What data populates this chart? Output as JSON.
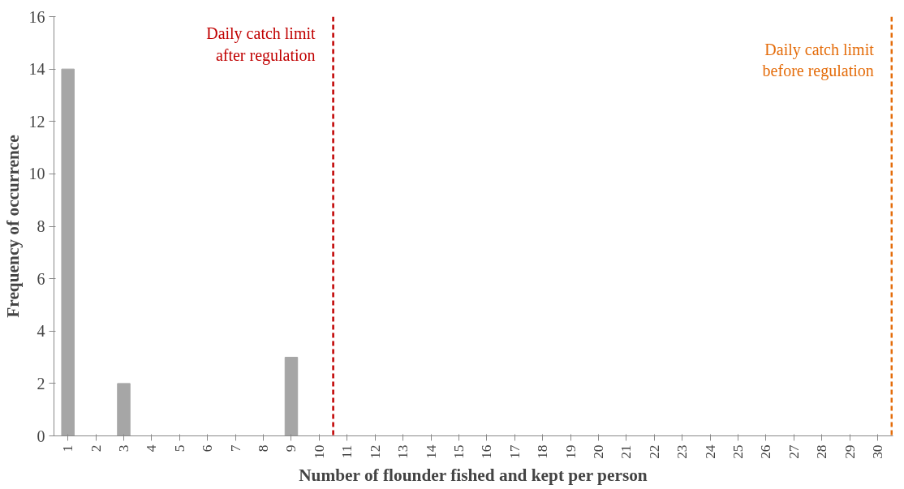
{
  "chart_data": {
    "type": "bar",
    "xlabel": "Number of flounder fished and kept per person",
    "ylabel": "Frequency of occurrence",
    "categories": [
      "1",
      "2",
      "3",
      "4",
      "5",
      "6",
      "7",
      "8",
      "9",
      "10",
      "11",
      "12",
      "13",
      "14",
      "15",
      "16",
      "17",
      "18",
      "19",
      "20",
      "21",
      "22",
      "23",
      "24",
      "25",
      "26",
      "27",
      "28",
      "29",
      "30"
    ],
    "values": [
      14,
      0,
      2,
      0,
      0,
      0,
      0,
      0,
      3,
      0,
      0,
      0,
      0,
      0,
      0,
      0,
      0,
      0,
      0,
      0,
      0,
      0,
      0,
      0,
      0,
      0,
      0,
      0,
      0,
      0
    ],
    "color": "#a6a6a6",
    "ylim": [
      0,
      16
    ],
    "yticks": [
      0,
      2,
      4,
      6,
      8,
      10,
      12,
      14,
      16
    ],
    "grid": false,
    "ref_lines": [
      {
        "axis": "x",
        "value": "10",
        "label": "Daily catch limit\nafter regulation",
        "color": "#c00000",
        "line_style": "dashed"
      },
      {
        "axis": "x",
        "value": "30",
        "label": "Daily catch limit\nbefore regulation",
        "color": "#e46c0a",
        "line_style": "dashed"
      }
    ]
  }
}
